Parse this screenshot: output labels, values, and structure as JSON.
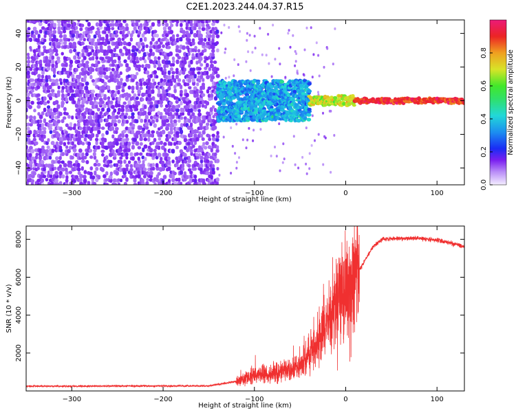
{
  "title": "C2E1.2023.244.04.37.R15",
  "colors": {
    "snr_line": "#f03030",
    "axis": "#000000",
    "spec_low": "#f0e8ff",
    "spec_mid": "#7a1ff0",
    "spec_blue": "#1a2cf5",
    "spec_cyan": "#22c8d8",
    "spec_green": "#2fe02f",
    "spec_red": "#e82020"
  },
  "chart_data": [
    {
      "type": "heatmap",
      "title": "",
      "xlabel": "Height of straight line (km)",
      "ylabel": "Frequency (Hz)",
      "xlim": [
        -350,
        130
      ],
      "ylim": [
        -50,
        48
      ],
      "xticks": [
        -300,
        -200,
        -100,
        0,
        100
      ],
      "yticks": [
        40,
        20,
        0,
        -20,
        -40
      ],
      "grid": false,
      "colorbar": {
        "label": "Normalized spectral amplitude",
        "range": [
          0,
          1
        ],
        "ticks": [
          "0.0",
          "0.2",
          "0.4",
          "0.6",
          "0.8"
        ],
        "colormap": "rainbow (white-violet-blue-cyan-green-yellow-red-magenta)"
      },
      "regions": [
        {
          "x": [
            -350,
            -140
          ],
          "freq": [
            -50,
            48
          ],
          "amplitude": 0.12,
          "description": "broadband noise"
        },
        {
          "x": [
            -140,
            -40
          ],
          "freq": [
            -12,
            12
          ],
          "amplitude": 0.35
        },
        {
          "x": [
            -40,
            10
          ],
          "freq": [
            -3,
            3
          ],
          "amplitude": 0.7
        },
        {
          "x": [
            10,
            130
          ],
          "freq": [
            -1.5,
            1.5
          ],
          "amplitude": 0.9
        }
      ]
    },
    {
      "type": "line",
      "title": "",
      "xlabel": "Height of straight line (km)",
      "ylabel": "SNR (10 * v/v)",
      "xlim": [
        -350,
        130
      ],
      "ylim": [
        0,
        8700
      ],
      "xticks": [
        -300,
        -200,
        -100,
        0,
        100
      ],
      "yticks": [
        2000,
        4000,
        6000,
        8000
      ],
      "grid": false,
      "series": [
        {
          "name": "",
          "x": [
            -350,
            -300,
            -250,
            -200,
            -150,
            -120,
            -100,
            -80,
            -60,
            -45,
            -30,
            -20,
            -10,
            0,
            10,
            20,
            30,
            40,
            60,
            80,
            100,
            115,
            130
          ],
          "y": [
            250,
            250,
            260,
            260,
            270,
            500,
            800,
            900,
            1100,
            1500,
            2600,
            3600,
            4800,
            5300,
            6000,
            6800,
            7600,
            8000,
            8050,
            8050,
            7950,
            7800,
            7600
          ]
        }
      ]
    }
  ]
}
